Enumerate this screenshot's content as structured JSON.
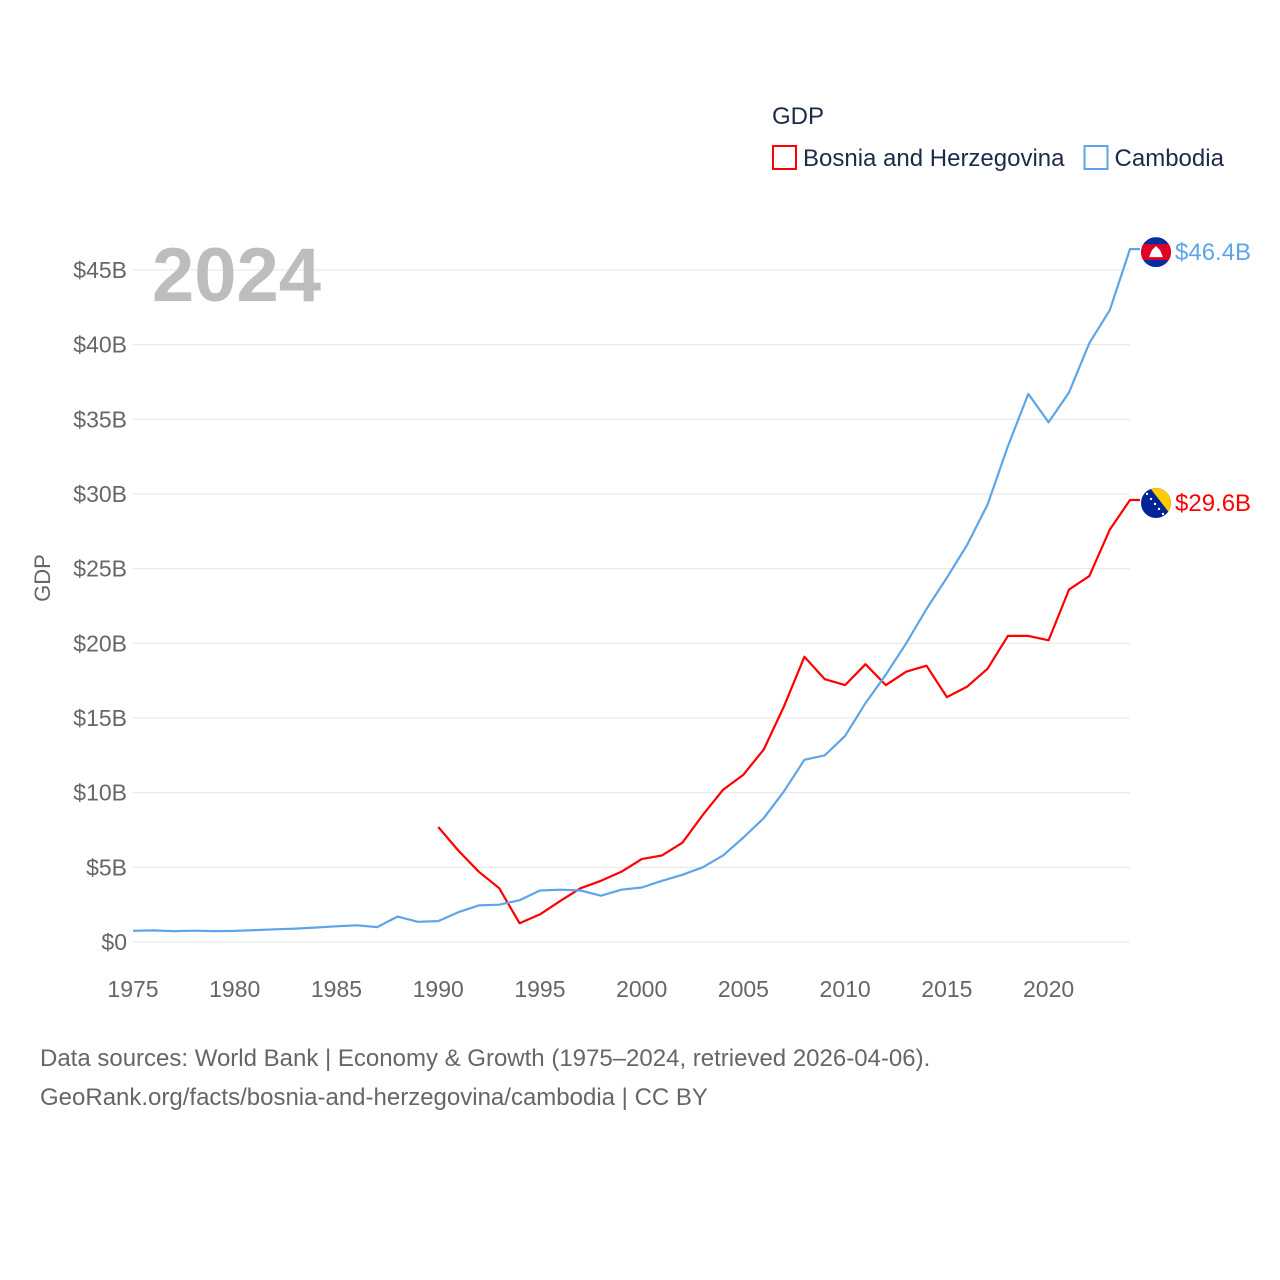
{
  "chart_data": {
    "type": "line",
    "title": "GDP",
    "year_label": "2024",
    "ylabel": "GDP",
    "xlabel": "",
    "xlim": [
      1975,
      2024
    ],
    "ylim": [
      0,
      45
    ],
    "grid": true,
    "legend_position": "top-right",
    "x_ticks": [
      "1975",
      "1980",
      "1985",
      "1990",
      "1995",
      "2000",
      "2005",
      "2010",
      "2015",
      "2020"
    ],
    "y_ticks": [
      {
        "v": 0,
        "label": "$0"
      },
      {
        "v": 5,
        "label": "$5B"
      },
      {
        "v": 10,
        "label": "$10B"
      },
      {
        "v": 15,
        "label": "$15B"
      },
      {
        "v": 20,
        "label": "$20B"
      },
      {
        "v": 25,
        "label": "$25B"
      },
      {
        "v": 30,
        "label": "$30B"
      },
      {
        "v": 35,
        "label": "$35B"
      },
      {
        "v": 40,
        "label": "$40B"
      },
      {
        "v": 45,
        "label": "$45B"
      }
    ],
    "series": [
      {
        "name": "Bosnia and Herzegovina",
        "color": "#ff0000",
        "end_label": "$29.6B",
        "start_year": 1990,
        "values": [
          7.7,
          6.1,
          4.7,
          3.6,
          1.25,
          1.85,
          2.75,
          3.6,
          4.1,
          4.7,
          5.55,
          5.8,
          6.65,
          8.5,
          10.2,
          11.2,
          12.9,
          15.8,
          19.1,
          17.6,
          17.2,
          18.6,
          17.2,
          18.1,
          18.5,
          16.4,
          17.1,
          18.3,
          20.5,
          20.5,
          20.2,
          23.6,
          24.5,
          27.6,
          29.6
        ]
      },
      {
        "name": "Cambodia",
        "color": "#5da5e8",
        "end_label": "$46.4B",
        "start_year": 1975,
        "values": [
          0.75,
          0.78,
          0.72,
          0.76,
          0.73,
          0.74,
          0.8,
          0.85,
          0.9,
          0.97,
          1.05,
          1.12,
          1.0,
          1.7,
          1.35,
          1.4,
          2.0,
          2.45,
          2.5,
          2.8,
          3.45,
          3.5,
          3.45,
          3.1,
          3.5,
          3.65,
          4.1,
          4.5,
          5.0,
          5.8,
          7.0,
          8.3,
          10.1,
          12.2,
          12.5,
          13.8,
          16.0,
          17.9,
          20.0,
          22.3,
          24.4,
          26.6,
          29.3,
          33.2,
          36.7,
          34.8,
          36.8,
          40.1,
          42.3,
          46.4
        ]
      }
    ]
  },
  "footer": {
    "line1": "Data sources: World Bank | Economy & Growth (1975–2024, retrieved 2026-04-06).",
    "line2": "GeoRank.org/facts/bosnia-and-herzegovina/cambodia | CC BY"
  }
}
